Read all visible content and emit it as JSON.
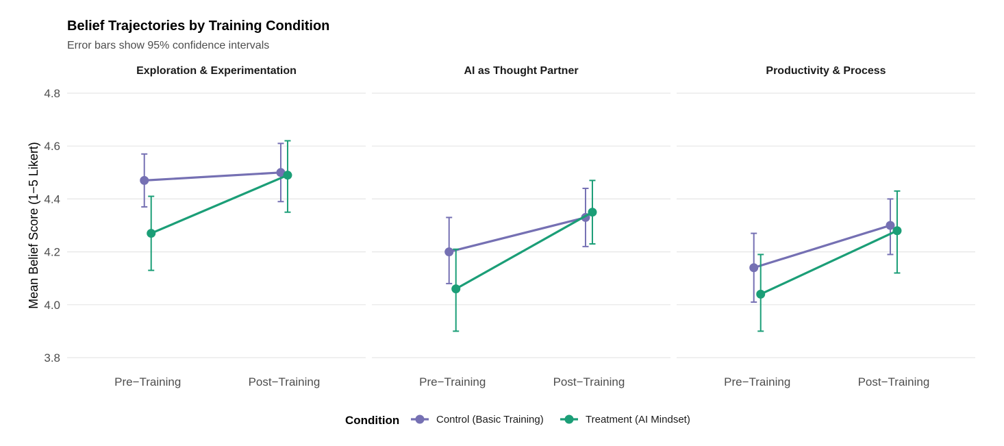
{
  "chart_data": {
    "type": "line",
    "title": "Belief Trajectories by Training Condition",
    "subtitle": "Error bars show 95% confidence intervals",
    "ylabel": "Mean Belief Score (1−5 Likert)",
    "xlabel": "",
    "ylim": [
      3.8,
      4.8
    ],
    "y_ticks": [
      "3.8",
      "4.0",
      "4.2",
      "4.4",
      "4.6",
      "4.8"
    ],
    "categories": [
      "Pre−Training",
      "Post−Training"
    ],
    "grid": true,
    "legend": {
      "title": "Condition",
      "position": "bottom"
    },
    "series_styles": [
      {
        "name": "Control (Basic Training)",
        "color": "#7570b3"
      },
      {
        "name": "Treatment (AI Mindset)",
        "color": "#1b9e77"
      }
    ],
    "panels": [
      {
        "title": "Exploration & Experimentation",
        "series": [
          {
            "name": "Control (Basic Training)",
            "values": [
              4.47,
              4.5
            ],
            "ci_low": [
              4.37,
              4.39
            ],
            "ci_high": [
              4.57,
              4.61
            ]
          },
          {
            "name": "Treatment (AI Mindset)",
            "values": [
              4.27,
              4.49
            ],
            "ci_low": [
              4.13,
              4.35
            ],
            "ci_high": [
              4.41,
              4.62
            ]
          }
        ]
      },
      {
        "title": "AI as Thought Partner",
        "series": [
          {
            "name": "Control (Basic Training)",
            "values": [
              4.2,
              4.33
            ],
            "ci_low": [
              4.08,
              4.22
            ],
            "ci_high": [
              4.33,
              4.44
            ]
          },
          {
            "name": "Treatment (AI Mindset)",
            "values": [
              4.06,
              4.35
            ],
            "ci_low": [
              3.9,
              4.23
            ],
            "ci_high": [
              4.21,
              4.47
            ]
          }
        ]
      },
      {
        "title": "Productivity & Process",
        "series": [
          {
            "name": "Control (Basic Training)",
            "values": [
              4.14,
              4.3
            ],
            "ci_low": [
              4.01,
              4.19
            ],
            "ci_high": [
              4.27,
              4.4
            ]
          },
          {
            "name": "Treatment (AI Mindset)",
            "values": [
              4.04,
              4.28
            ],
            "ci_low": [
              3.9,
              4.12
            ],
            "ci_high": [
              4.19,
              4.43
            ]
          }
        ]
      }
    ]
  }
}
